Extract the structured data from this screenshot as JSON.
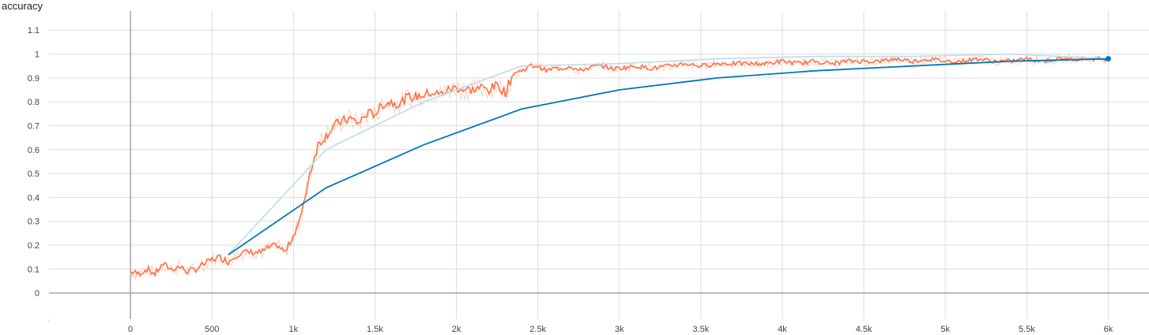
{
  "chart_data": {
    "type": "line",
    "title": "accuracy",
    "xlabel": "",
    "ylabel": "",
    "xlim": [
      -500,
      6250
    ],
    "ylim": [
      -0.11,
      1.18
    ],
    "grid": true,
    "x_ticks": [
      0,
      500,
      1000,
      1500,
      2000,
      2500,
      3000,
      3500,
      4000,
      4500,
      5000,
      5500,
      6000
    ],
    "x_tick_labels": [
      "0",
      "500",
      "1k",
      "1.5k",
      "2k",
      "2.5k",
      "3k",
      "3.5k",
      "4k",
      "4.5k",
      "5k",
      "5.5k",
      "6k"
    ],
    "y_ticks": [
      0,
      0.1,
      0.2,
      0.3,
      0.4,
      0.5,
      0.6,
      0.7,
      0.8,
      0.9,
      1,
      1.1
    ],
    "y_tick_labels": [
      "0",
      "0.1",
      "0.2",
      "0.3",
      "0.4",
      "0.5",
      "0.6",
      "0.7",
      "0.8",
      "0.9",
      "1",
      "1.1"
    ],
    "series": [
      {
        "color": "#ff7043",
        "raw_color": "#ffccbc",
        "x": [
          0,
          50,
          100,
          150,
          200,
          250,
          300,
          350,
          400,
          450,
          500,
          550,
          600,
          650,
          700,
          750,
          800,
          850,
          900,
          950,
          1000,
          1050,
          1100,
          1150,
          1200,
          1250,
          1300,
          1350,
          1400,
          1450,
          1500,
          1550,
          1600,
          1650,
          1700,
          1750,
          1800,
          1850,
          1900,
          1950,
          2000,
          2050,
          2100,
          2150,
          2200,
          2250,
          2300,
          2350,
          2400,
          2450,
          2500,
          2550,
          2600,
          2650,
          2700,
          2750,
          2800,
          2850,
          2900,
          2950,
          3000,
          3100,
          3200,
          3300,
          3400,
          3500,
          3600,
          3700,
          3800,
          3900,
          4000,
          4100,
          4200,
          4300,
          4400,
          4500,
          4600,
          4700,
          4800,
          4900,
          5000,
          5100,
          5200,
          5300,
          5400,
          5500,
          5600,
          5700,
          5800,
          5900,
          6000
        ],
        "y": [
          0.09,
          0.08,
          0.1,
          0.08,
          0.12,
          0.1,
          0.11,
          0.09,
          0.1,
          0.12,
          0.14,
          0.15,
          0.13,
          0.16,
          0.17,
          0.17,
          0.17,
          0.19,
          0.2,
          0.17,
          0.24,
          0.33,
          0.5,
          0.62,
          0.66,
          0.7,
          0.72,
          0.73,
          0.71,
          0.75,
          0.75,
          0.79,
          0.8,
          0.79,
          0.82,
          0.82,
          0.83,
          0.84,
          0.83,
          0.85,
          0.86,
          0.85,
          0.85,
          0.86,
          0.85,
          0.87,
          0.84,
          0.92,
          0.93,
          0.95,
          0.95,
          0.93,
          0.94,
          0.94,
          0.95,
          0.93,
          0.94,
          0.95,
          0.95,
          0.94,
          0.94,
          0.95,
          0.94,
          0.95,
          0.96,
          0.95,
          0.96,
          0.96,
          0.96,
          0.96,
          0.97,
          0.96,
          0.97,
          0.96,
          0.97,
          0.97,
          0.97,
          0.98,
          0.97,
          0.98,
          0.97,
          0.97,
          0.98,
          0.97,
          0.97,
          0.98,
          0.97,
          0.98,
          0.98,
          0.98,
          0.98
        ]
      },
      {
        "color": "#0077bb",
        "raw_color": "#bcdcef",
        "x": [
          600,
          1200,
          1800,
          2400,
          3000,
          3600,
          4200,
          4800,
          5400,
          6000
        ],
        "y": [
          0.16,
          0.44,
          0.62,
          0.77,
          0.85,
          0.9,
          0.93,
          0.95,
          0.97,
          0.98
        ],
        "raw_y": [
          0.16,
          0.6,
          0.8,
          0.95,
          0.96,
          0.98,
          0.99,
          0.99,
          1.0,
          0.98
        ]
      }
    ]
  }
}
